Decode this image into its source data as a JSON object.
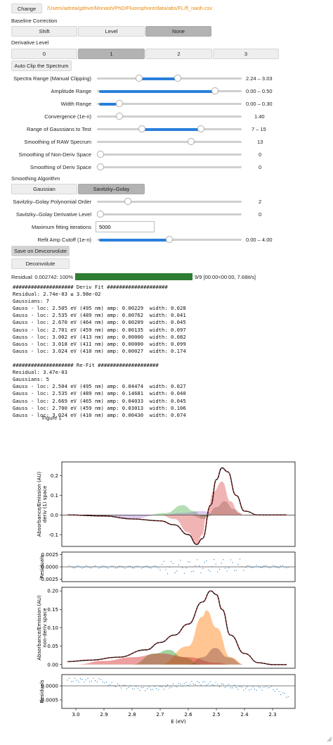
{
  "header": {
    "change_label": "Change",
    "path": "/Users/adrea/gdrive/Monash/PhD/Fluorophore/data/abs/FL/fl_naoh.csv",
    "path_color": "#e8890c"
  },
  "baseline": {
    "title": "Baseline Correction",
    "options": [
      "Shift",
      "Level",
      "None"
    ],
    "selected": "None"
  },
  "derivative": {
    "title": "Derivative Level",
    "options": [
      "0",
      "1",
      "2",
      "3"
    ],
    "selected": "1"
  },
  "auto_clip_label": "Auto Clip the Spectrum",
  "sliders": {
    "range": {
      "label": "Spectra Range (Manual Clipping)",
      "value": "2.24 – 3.03",
      "lo": 0.28,
      "hi": 0.56
    },
    "amplitude": {
      "label": "Amplitude Range",
      "value": "0.00 – 0.50",
      "lo": 0.0,
      "hi": 0.83
    },
    "width": {
      "label": "Width Range",
      "value": "0.00 – 0.30",
      "lo": 0.0,
      "hi": 0.14
    },
    "convergence": {
      "label": "Convergence (1e-n)",
      "value": "1.40",
      "pos": 0.14
    },
    "gaussians": {
      "label": "Range of Gaussians to Test",
      "value": "7 – 15",
      "lo": 0.3,
      "hi": 0.73
    },
    "smooth_raw": {
      "label": "Smoothing of RAW Specrum",
      "value": "13",
      "pos": 0.66
    },
    "smooth_nonderiv": {
      "label": "Smoothing of Non-Deriv Space",
      "value": "0",
      "pos": 0.0
    },
    "smooth_deriv": {
      "label": "Smoothing of Deriv Space",
      "value": "0",
      "pos": 0.0
    }
  },
  "smoothing_algo": {
    "title": "Smoothing Algorithm",
    "options": [
      "Gaussian",
      "Savitzky–Golay"
    ],
    "selected": "Savitzky–Golay"
  },
  "sg": {
    "poly": {
      "label": "Savitzky–Golay Polynomial Order",
      "value": "2",
      "pos": 0.2
    },
    "deriv": {
      "label": "Savitzky–Golay Derivative Level",
      "value": "0",
      "pos": 0.0
    }
  },
  "max_iter": {
    "label": "Maximum fitting iterations",
    "value": "5000"
  },
  "refit": {
    "label": "Refit Amp Cutoff (1e-n)",
    "value": "0.00 – 4.00",
    "lo": 0.0,
    "hi": 0.5
  },
  "save_label": "Save on Devconvolute",
  "deconvolute_label": "Deconvolute",
  "progress": {
    "label": "Residual: 0.002742: 100%",
    "fraction": 1.0,
    "status": "9/9 [00:00<00:00, 7.68it/s]",
    "color": "#2e7d32"
  },
  "log_lines": [
    "#################### Deriv Fit ####################",
    "Residual: 2.74e-03 ≤ 3.98e-02",
    "Gaussians: 7",
    "Gauss - loc: 2.505 eV (495 nm) amp: 0.00229  width: 0.028",
    "Gauss - loc: 2.535 eV (489 nm) amp: 0.00762  width: 0.041",
    "Gauss - loc: 2.670 eV (464 nm) amp: 0.00209  width: 0.045",
    "Gauss - loc: 2.701 eV (459 nm) amp: 0.00135  width: 0.097",
    "Gauss - loc: 3.002 eV (413 nm) amp: 0.00000  width: 0.082",
    "Gauss - loc: 3.018 eV (411 nm) amp: 0.00000  width: 0.099",
    "Gauss - loc: 3.024 eV (410 nm) amp: 0.00027  width: 0.174",
    "",
    "#################### Re-Fit ####################",
    "Residual: 3.47e-03",
    "Gaussians: 5",
    "Gauss - loc: 2.504 eV (495 nm) amp: 0.04474  width: 0.027",
    "Gauss - loc: 2.535 eV (489 nm) amp: 0.14681  width: 0.040",
    "Gauss - loc: 2.669 eV (465 nm) amp: 0.04033  width: 0.045",
    "Gauss - loc: 2.700 eV (459 nm) amp: 0.03013  width: 0.106",
    "Gauss - loc: 3.024 eV (410 nm) amp: 0.00430  width: 0.074"
  ],
  "figure_title": "Figure 1",
  "chart_data": [
    {
      "type": "area",
      "ylabel": "Absorbance/Emission (AU)\nderiv (1) space",
      "xlim": [
        3.05,
        2.22
      ],
      "ylim": [
        -0.16,
        0.27
      ],
      "yticks": [
        "0.2",
        "0.1",
        "0.0",
        "-0.1"
      ],
      "series": [
        {
          "color": "#d62728",
          "x": [
            3.0,
            2.7,
            2.65,
            2.6,
            2.57,
            2.55,
            2.535,
            2.51,
            2.48,
            2.45,
            2.42,
            2.4
          ],
          "values": [
            0,
            0,
            -0.02,
            -0.09,
            -0.15,
            -0.1,
            0.0,
            0.12,
            0.17,
            0.07,
            0.01,
            0
          ]
        },
        {
          "color": "#2ca02c",
          "x": [
            2.75,
            2.68,
            2.62,
            2.58,
            2.55,
            2.5
          ],
          "values": [
            0,
            0.01,
            0.05,
            0.02,
            -0.01,
            0
          ]
        },
        {
          "color": "#9467bd",
          "x": [
            2.9,
            2.8,
            2.7,
            2.62,
            2.55,
            2.5
          ],
          "values": [
            0,
            -0.02,
            0.0,
            0.01,
            0.02,
            0
          ]
        },
        {
          "color": "#8c564b",
          "x": [
            2.6,
            2.54,
            2.5,
            2.47,
            2.44,
            2.4
          ],
          "values": [
            0,
            -0.02,
            0.04,
            0.07,
            0.03,
            0
          ]
        },
        {
          "color": "#000000",
          "x": [
            3.03,
            2.9,
            2.8,
            2.7,
            2.65,
            2.6,
            2.57,
            2.55,
            2.52,
            2.5,
            2.48,
            2.46,
            2.43,
            2.4,
            2.35,
            2.3,
            2.25
          ],
          "values": [
            0,
            -0.005,
            -0.02,
            -0.03,
            -0.05,
            -0.1,
            -0.15,
            -0.12,
            0.05,
            0.18,
            0.24,
            0.22,
            0.1,
            0.02,
            0.0,
            0.0,
            0.0
          ]
        }
      ]
    },
    {
      "type": "scatter",
      "ylabel": "Residuals",
      "ylim": [
        -0.003,
        0.003
      ],
      "yticks": [
        "0.0025",
        "0.0000",
        "-0.0025"
      ]
    },
    {
      "type": "area",
      "ylabel": "Absorbance/Emission (AU)\nnon-deriv space",
      "xlim": [
        3.05,
        2.22
      ],
      "ylim": [
        -0.01,
        0.21
      ],
      "yticks": [
        "0.20",
        "0.15",
        "0.10",
        "0.05",
        "0.00"
      ],
      "series": [
        {
          "color": "#ff7f0e",
          "x": [
            2.7,
            2.6,
            2.55,
            2.535,
            2.5,
            2.45,
            2.4
          ],
          "values": [
            0,
            0.05,
            0.13,
            0.147,
            0.1,
            0.02,
            0
          ]
        },
        {
          "color": "#2ca02c",
          "x": [
            2.8,
            2.72,
            2.669,
            2.62,
            2.55
          ],
          "values": [
            0,
            0.03,
            0.04,
            0.02,
            0
          ]
        },
        {
          "color": "#d62728",
          "x": [
            3.0,
            2.9,
            2.8,
            2.7,
            2.6,
            2.5,
            2.45
          ],
          "values": [
            0,
            0.01,
            0.02,
            0.03,
            0.02,
            0.005,
            0
          ]
        },
        {
          "color": "#8c564b",
          "x": [
            2.6,
            2.55,
            2.504,
            2.46,
            2.4
          ],
          "values": [
            0,
            0.02,
            0.045,
            0.02,
            0
          ]
        },
        {
          "color": "#000000",
          "x": [
            3.03,
            2.95,
            2.85,
            2.75,
            2.7,
            2.65,
            2.6,
            2.55,
            2.52,
            2.5,
            2.48,
            2.45,
            2.4,
            2.35,
            2.3,
            2.25
          ],
          "values": [
            0.008,
            0.012,
            0.02,
            0.04,
            0.06,
            0.08,
            0.11,
            0.17,
            0.2,
            0.19,
            0.15,
            0.08,
            0.03,
            0.005,
            0.0,
            0.0
          ]
        }
      ]
    },
    {
      "type": "scatter",
      "ylabel": "Residuals",
      "xlabel": "E (eV)",
      "ylim": [
        -0.0008,
        0.0004
      ],
      "yticks": [
        "0.0000",
        "-0.0005"
      ],
      "xticks": [
        "3.0",
        "2.9",
        "2.8",
        "2.7",
        "2.6",
        "2.5",
        "2.4",
        "2.3"
      ]
    }
  ]
}
